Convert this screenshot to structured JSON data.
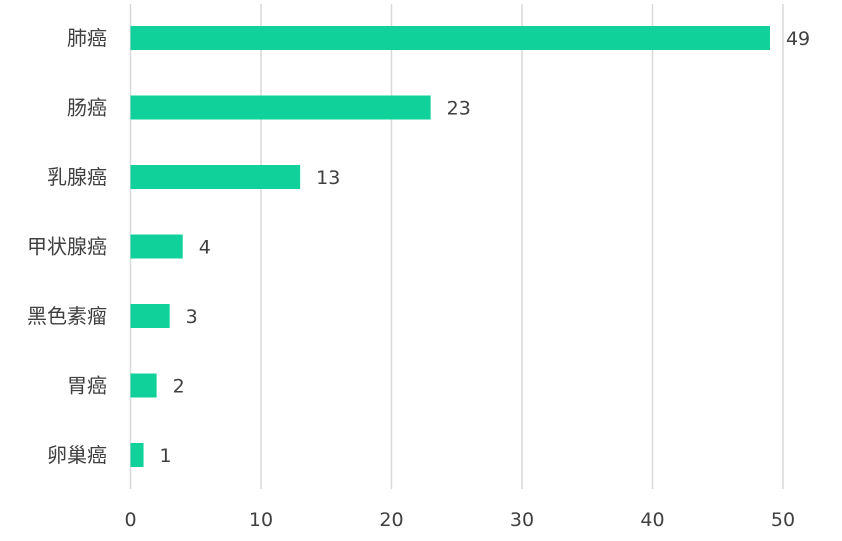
{
  "colors": {
    "bar": "#11d19a",
    "grid": "#d9d9d9",
    "text": "#404040",
    "background": "#ffffff"
  },
  "chart_data": {
    "type": "bar",
    "orientation": "horizontal",
    "categories": [
      "肺癌",
      "肠癌",
      "乳腺癌",
      "甲状腺癌",
      "黑色素瘤",
      "胃癌",
      "卵巢癌"
    ],
    "values": [
      49,
      23,
      13,
      4,
      3,
      2,
      1
    ],
    "data_labels": [
      "49",
      "23",
      "13",
      "4",
      "3",
      "2",
      "1"
    ],
    "x_ticks": [
      0,
      10,
      20,
      30,
      40,
      50
    ],
    "x_tick_labels": [
      "0",
      "10",
      "20",
      "30",
      "40",
      "50"
    ],
    "xlim": [
      0,
      50
    ],
    "grid": "vertical",
    "legend": "none"
  }
}
